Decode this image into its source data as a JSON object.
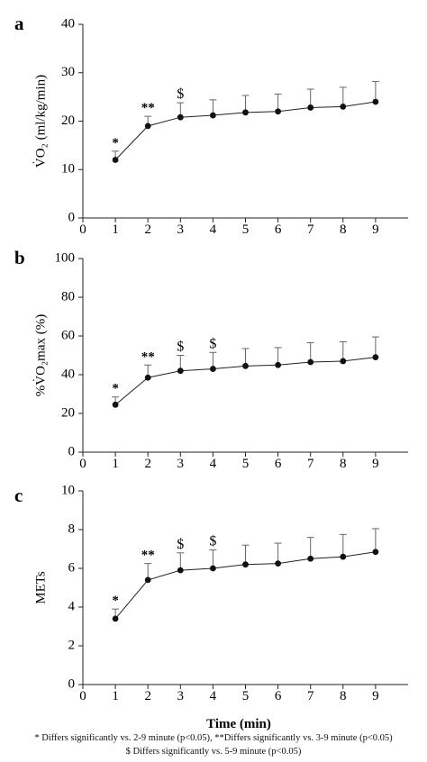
{
  "figure": {
    "xlabel": "Time (min)",
    "footnote_line1": "* Differs significantly vs. 2-9 minute (p<0.05), **Differs significantly vs. 3-9 minute (p<0.05)",
    "footnote_line2": "$ Differs significantly vs. 5-9 minute (p<0.05)"
  },
  "chart_data": [
    {
      "type": "line",
      "panel_letter": "a",
      "ylabel": "V̇O₂ (ml/kg/min)",
      "x": [
        1,
        2,
        3,
        4,
        5,
        6,
        7,
        8,
        9
      ],
      "y": [
        12.0,
        19.0,
        20.8,
        21.2,
        21.8,
        22.0,
        22.8,
        23.0,
        24.0
      ],
      "error_upper": [
        1.8,
        2.0,
        3.0,
        3.2,
        3.5,
        3.6,
        3.8,
        4.0,
        4.2
      ],
      "significance_marks": [
        {
          "x": 1,
          "mark": "*"
        },
        {
          "x": 2,
          "mark": "**"
        },
        {
          "x": 3,
          "mark": "$"
        }
      ],
      "xlim": [
        0,
        10
      ],
      "ylim": [
        0,
        40
      ],
      "xticks": [
        0,
        1,
        2,
        3,
        4,
        5,
        6,
        7,
        8,
        9
      ],
      "yticks": [
        0,
        10,
        20,
        30,
        40
      ]
    },
    {
      "type": "line",
      "panel_letter": "b",
      "ylabel": "%V̇O₂max (%)",
      "x": [
        1,
        2,
        3,
        4,
        5,
        6,
        7,
        8,
        9
      ],
      "y": [
        24.5,
        38.5,
        42.0,
        43.0,
        44.5,
        45.0,
        46.5,
        47.0,
        49.0
      ],
      "error_upper": [
        4.0,
        6.5,
        8.0,
        8.5,
        9.0,
        9.0,
        10.0,
        10.0,
        10.5
      ],
      "significance_marks": [
        {
          "x": 1,
          "mark": "*"
        },
        {
          "x": 2,
          "mark": "**"
        },
        {
          "x": 3,
          "mark": "$"
        },
        {
          "x": 4,
          "mark": "$"
        }
      ],
      "xlim": [
        0,
        10
      ],
      "ylim": [
        0,
        100
      ],
      "xticks": [
        0,
        1,
        2,
        3,
        4,
        5,
        6,
        7,
        8,
        9
      ],
      "yticks": [
        0,
        20,
        40,
        60,
        80,
        100
      ]
    },
    {
      "type": "line",
      "panel_letter": "c",
      "ylabel": "METs",
      "x": [
        1,
        2,
        3,
        4,
        5,
        6,
        7,
        8,
        9
      ],
      "y": [
        3.4,
        5.4,
        5.9,
        6.0,
        6.2,
        6.25,
        6.5,
        6.6,
        6.85
      ],
      "error_upper": [
        0.5,
        0.85,
        0.9,
        0.95,
        1.0,
        1.05,
        1.1,
        1.15,
        1.2
      ],
      "significance_marks": [
        {
          "x": 1,
          "mark": "*"
        },
        {
          "x": 2,
          "mark": "**"
        },
        {
          "x": 3,
          "mark": "$"
        },
        {
          "x": 4,
          "mark": "$"
        }
      ],
      "xlim": [
        0,
        10
      ],
      "ylim": [
        0,
        10
      ],
      "xticks": [
        0,
        1,
        2,
        3,
        4,
        5,
        6,
        7,
        8,
        9
      ],
      "yticks": [
        0,
        2,
        4,
        6,
        8,
        10
      ]
    }
  ]
}
